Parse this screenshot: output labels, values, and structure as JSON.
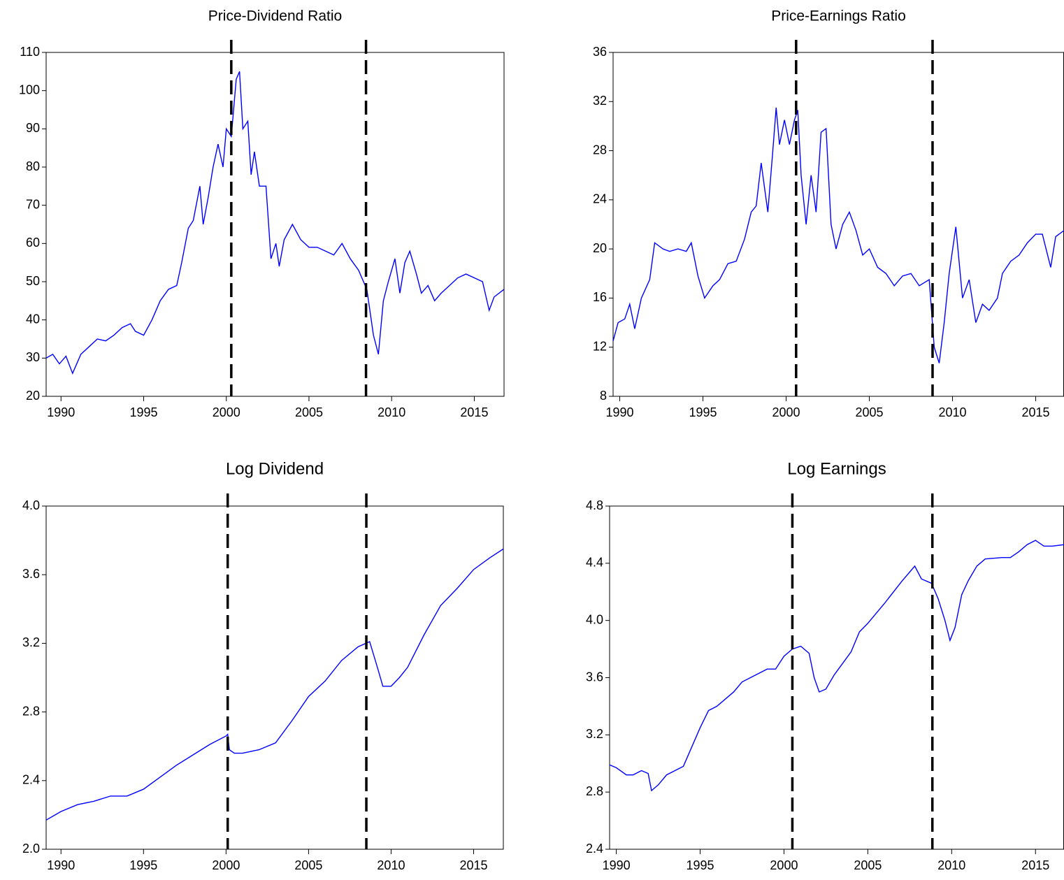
{
  "chart_data": [
    {
      "type": "line",
      "title": "Price-Dividend Ratio",
      "color": "#0000ff",
      "xlim": [
        1989.1,
        2016.8
      ],
      "xticks": [
        1990,
        1995,
        2000,
        2005,
        2010,
        2015
      ],
      "ylim": [
        20,
        110
      ],
      "yticks": [
        20,
        30,
        40,
        50,
        60,
        70,
        80,
        90,
        100,
        110
      ],
      "vlines": [
        2000.3,
        2008.45
      ],
      "x": [
        1989.1,
        1989.5,
        1989.9,
        1990.3,
        1990.7,
        1991.2,
        1991.7,
        1992.2,
        1992.7,
        1993.2,
        1993.7,
        1994.2,
        1994.5,
        1995,
        1995.5,
        1996,
        1996.5,
        1997,
        1997.3,
        1997.7,
        1998,
        1998.4,
        1998.6,
        1998.9,
        1999.2,
        1999.5,
        1999.8,
        2000,
        2000.3,
        2000.6,
        2000.8,
        2001,
        2001.3,
        2001.5,
        2001.7,
        2002,
        2002.4,
        2002.7,
        2003,
        2003.2,
        2003.5,
        2004,
        2004.5,
        2005,
        2005.5,
        2006,
        2006.5,
        2007,
        2007.5,
        2008,
        2008.5,
        2008.9,
        2009.2,
        2009.5,
        2009.8,
        2010.2,
        2010.5,
        2010.8,
        2011.1,
        2011.5,
        2011.8,
        2012.2,
        2012.6,
        2013,
        2013.5,
        2014,
        2014.5,
        2015,
        2015.5,
        2015.9,
        2016.2,
        2016.8
      ],
      "values": [
        30,
        31,
        28.5,
        30.5,
        26,
        31,
        33,
        35,
        34.5,
        36,
        38,
        39,
        37,
        36,
        40,
        45,
        48,
        49,
        55,
        64,
        66,
        75,
        65,
        72,
        80,
        86,
        80,
        90,
        88,
        103,
        105,
        90,
        92,
        78,
        84,
        75,
        75,
        56,
        60,
        54,
        61,
        65,
        61,
        59,
        59,
        58,
        57,
        60,
        56,
        53,
        48,
        36,
        31,
        45,
        50,
        56,
        47,
        55,
        58,
        52,
        47,
        49,
        45,
        47,
        49,
        51,
        52,
        51,
        50,
        42.5,
        46,
        48
      ]
    },
    {
      "type": "line",
      "title": "Price-Earnings Ratio",
      "color": "#0000ff",
      "xlim": [
        1989.6,
        2016.7
      ],
      "xticks": [
        1990,
        1995,
        2000,
        2005,
        2010,
        2015
      ],
      "ylim": [
        8,
        36
      ],
      "yticks": [
        8,
        12,
        16,
        20,
        24,
        28,
        32,
        36
      ],
      "vlines": [
        2000.6,
        2008.8
      ],
      "x": [
        1989.6,
        1989.9,
        1990.3,
        1990.6,
        1990.9,
        1991.3,
        1991.8,
        1992.1,
        1992.6,
        1993,
        1993.5,
        1994,
        1994.3,
        1994.7,
        1995.1,
        1995.6,
        1996,
        1996.5,
        1997,
        1997.5,
        1997.9,
        1998.2,
        1998.5,
        1998.9,
        1999.2,
        1999.4,
        1999.6,
        1999.9,
        2000.2,
        2000.5,
        2000.7,
        2000.9,
        2001.2,
        2001.5,
        2001.8,
        2002.1,
        2002.4,
        2002.7,
        2003,
        2003.4,
        2003.8,
        2004.2,
        2004.6,
        2005,
        2005.5,
        2006,
        2006.5,
        2007,
        2007.5,
        2008,
        2008.6,
        2008.9,
        2009.2,
        2009.5,
        2009.8,
        2010.2,
        2010.6,
        2011,
        2011.4,
        2011.8,
        2012.2,
        2012.7,
        2013,
        2013.5,
        2014,
        2014.5,
        2015,
        2015.4,
        2015.9,
        2016.2,
        2016.7
      ],
      "values": [
        12.5,
        14,
        14.3,
        15.5,
        13.5,
        16,
        17.5,
        20.5,
        20,
        19.8,
        20,
        19.8,
        20.5,
        17.8,
        16,
        17,
        17.5,
        18.8,
        19,
        20.8,
        23,
        23.5,
        27,
        23,
        28,
        31.5,
        28.5,
        30.5,
        28.5,
        30.5,
        31.3,
        26,
        22,
        26,
        23,
        29.5,
        29.8,
        22,
        20,
        22,
        23,
        21.5,
        19.5,
        20,
        18.5,
        18,
        17,
        17.8,
        18,
        17,
        17.5,
        12,
        10.7,
        14,
        18,
        21.8,
        16,
        17.5,
        14,
        15.5,
        15,
        16,
        18,
        19,
        19.5,
        20.5,
        21.2,
        21.2,
        18.5,
        21,
        21.5
      ]
    },
    {
      "type": "line",
      "title": "Log Dividend",
      "color": "#0000ff",
      "xlim": [
        1989.1,
        2016.8
      ],
      "xticks": [
        1990,
        1995,
        2000,
        2005,
        2010,
        2015
      ],
      "ylim": [
        2.0,
        4.0
      ],
      "yticks": [
        {
          "value": 2,
          "label": "2.0"
        },
        2.4,
        2.8,
        3.2,
        3.6,
        {
          "value": 4,
          "label": "4.0"
        }
      ],
      "vlines": [
        2000.1,
        2008.5
      ],
      "x": [
        1989.1,
        1990,
        1991,
        1992,
        1993,
        1994,
        1995,
        1996,
        1997,
        1998,
        1999,
        2000,
        2000.1,
        2000.2,
        2000.5,
        2001,
        2002,
        2003,
        2004,
        2005,
        2006,
        2007,
        2008,
        2008.7,
        2009.2,
        2009.5,
        2010,
        2010.5,
        2011,
        2012,
        2013,
        2014,
        2015,
        2016,
        2016.8
      ],
      "values": [
        2.17,
        2.22,
        2.26,
        2.28,
        2.31,
        2.31,
        2.35,
        2.42,
        2.49,
        2.55,
        2.61,
        2.66,
        2.67,
        2.58,
        2.56,
        2.56,
        2.58,
        2.62,
        2.75,
        2.89,
        2.98,
        3.1,
        3.18,
        3.21,
        3.05,
        2.95,
        2.95,
        3.0,
        3.06,
        3.25,
        3.42,
        3.52,
        3.63,
        3.7,
        3.75
      ]
    },
    {
      "type": "line",
      "title": "Log Earnings",
      "color": "#0000ff",
      "xlim": [
        1989.6,
        2016.7
      ],
      "xticks": [
        1990,
        1995,
        2000,
        2005,
        2010,
        2015
      ],
      "ylim": [
        2.4,
        4.8
      ],
      "yticks": [
        2.4,
        2.8,
        3.2,
        3.6,
        {
          "value": 4,
          "label": "4.0"
        },
        4.4,
        4.8
      ],
      "vlines": [
        2000.5,
        2008.85
      ],
      "x": [
        1989.6,
        1990,
        1990.6,
        1991,
        1991.5,
        1991.9,
        1992.1,
        1992.5,
        1993,
        1994,
        1995,
        1995.5,
        1996,
        1997,
        1997.5,
        1998,
        1999,
        1999.5,
        2000,
        2000.5,
        2001,
        2001.5,
        2001.8,
        2002.1,
        2002.5,
        2003,
        2004,
        2004.5,
        2005,
        2006,
        2007,
        2007.8,
        2008.2,
        2008.8,
        2009.2,
        2009.6,
        2009.9,
        2010.2,
        2010.6,
        2011,
        2011.5,
        2012,
        2013,
        2013.5,
        2014,
        2014.5,
        2015,
        2015.5,
        2016,
        2016.7
      ],
      "values": [
        2.99,
        2.97,
        2.92,
        2.92,
        2.95,
        2.93,
        2.81,
        2.85,
        2.92,
        2.98,
        3.25,
        3.37,
        3.4,
        3.5,
        3.57,
        3.6,
        3.66,
        3.66,
        3.75,
        3.8,
        3.82,
        3.77,
        3.6,
        3.5,
        3.52,
        3.62,
        3.78,
        3.92,
        3.98,
        4.12,
        4.27,
        4.38,
        4.29,
        4.26,
        4.15,
        4.0,
        3.86,
        3.95,
        4.18,
        4.28,
        4.38,
        4.43,
        4.44,
        4.44,
        4.48,
        4.53,
        4.56,
        4.52,
        4.52,
        4.53
      ]
    }
  ]
}
